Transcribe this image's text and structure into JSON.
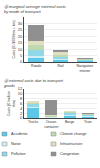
{
  "chart_data": [
    {
      "type": "bar",
      "stacked": true,
      "grid": true,
      "title": "ⓐ marginal average external costs\nby mode of transport",
      "categories": [
        "Roads",
        "Rail",
        "Navigation\ninterior"
      ],
      "ylabel": "Costs (€ /1000tkm + km)",
      "ylim": [
        0,
        35
      ],
      "yticks": [
        0,
        5,
        10,
        15,
        20,
        25,
        30
      ],
      "series": [
        {
          "name": "Accidents",
          "color": "#5bc8e8",
          "values": [
            3.0,
            1.2,
            0.4
          ]
        },
        {
          "name": "Noise",
          "color": "#d0eef8",
          "values": [
            2.0,
            0.8,
            0.3
          ]
        },
        {
          "name": "Pollution",
          "color": "#90d8e8",
          "values": [
            4.5,
            2.0,
            0.6
          ]
        },
        {
          "name": "Climate change",
          "color": "#c0d8b0",
          "values": [
            3.5,
            1.5,
            0.7
          ]
        },
        {
          "name": "Infrastructure",
          "color": "#e0e0c0",
          "values": [
            3.0,
            2.0,
            0.5
          ]
        },
        {
          "name": "Congestion",
          "color": "#909090",
          "values": [
            13.0,
            1.5,
            1.0
          ]
        }
      ]
    },
    {
      "type": "bar",
      "stacked": true,
      "grid": true,
      "legend": "bottom",
      "title": "ⓑ external costs due to transport\ngoods",
      "categories": [
        "Trucks",
        "Ocean-\ncontainer",
        "Barge",
        "Train"
      ],
      "ylabel": "Costs (€ /million\ntkm)",
      "ylim": [
        0,
        12
      ],
      "yticks": [
        0,
        2,
        4,
        6,
        8,
        10,
        12
      ],
      "series": [
        {
          "name": "Accidents",
          "color": "#5bc8e8",
          "values": [
            4.0,
            0.2,
            1.0,
            0.4
          ]
        },
        {
          "name": "Noise",
          "color": "#d0eef8",
          "values": [
            0.6,
            0.1,
            0.3,
            0.3
          ]
        },
        {
          "name": "Pollution",
          "color": "#90d8e8",
          "values": [
            1.0,
            0.2,
            0.6,
            0.4
          ]
        },
        {
          "name": "Climate change",
          "color": "#c0d8b0",
          "values": [
            0.8,
            0.4,
            0.5,
            0.4
          ]
        },
        {
          "name": "Infrastructure",
          "color": "#e0e0c0",
          "values": [
            0.5,
            0.2,
            0.3,
            0.3
          ]
        },
        {
          "name": "Congestion",
          "color": "#909090",
          "values": [
            0.3,
            6.5,
            0.3,
            0.3
          ]
        }
      ]
    }
  ]
}
